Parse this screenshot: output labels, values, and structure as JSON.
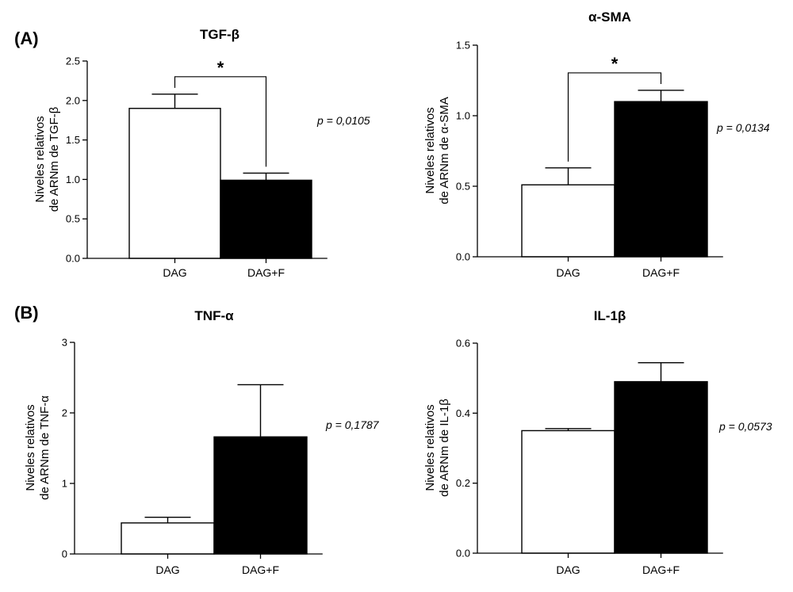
{
  "panel_labels": [
    "(A)",
    "(B)"
  ],
  "chart_data": [
    {
      "type": "bar",
      "title": "TGF-β",
      "ylabel_lines": [
        "Niveles relativos",
        "de ARNm de TGF-β"
      ],
      "categories": [
        "DAG",
        "DAG+F"
      ],
      "values": [
        1.9,
        0.99
      ],
      "errors": [
        0.18,
        0.09
      ],
      "bar_fill": [
        "#ffffff",
        "#000000"
      ],
      "ylim": [
        0,
        2.5
      ],
      "yticks": [
        0,
        0.5,
        1.0,
        1.5,
        2.0,
        2.5
      ],
      "ytick_labels": [
        "0.0",
        "0.5",
        "1.0",
        "1.5",
        "2.0",
        "2.5"
      ],
      "p_value": "p = 0,0105",
      "significance": "*",
      "significance_bracket": true
    },
    {
      "type": "bar",
      "title": "α-SMA",
      "ylabel_lines": [
        "Niveles relativos",
        "de ARNm de α-SMA"
      ],
      "categories": [
        "DAG",
        "DAG+F"
      ],
      "values": [
        0.51,
        1.1
      ],
      "errors": [
        0.12,
        0.08
      ],
      "bar_fill": [
        "#ffffff",
        "#000000"
      ],
      "ylim": [
        0,
        1.5
      ],
      "yticks": [
        0,
        0.5,
        1.0,
        1.5
      ],
      "ytick_labels": [
        "0.0",
        "0.5",
        "1.0",
        "1.5"
      ],
      "p_value": "p = 0,0134",
      "significance": "*",
      "significance_bracket": true
    },
    {
      "type": "bar",
      "title": "TNF-α",
      "ylabel_lines": [
        "Niveles relativos",
        "de ARNm de TNF-α"
      ],
      "categories": [
        "DAG",
        "DAG+F"
      ],
      "values": [
        0.44,
        1.66
      ],
      "errors": [
        0.08,
        0.74
      ],
      "bar_fill": [
        "#ffffff",
        "#000000"
      ],
      "ylim": [
        0,
        3
      ],
      "yticks": [
        0,
        1,
        2,
        3
      ],
      "ytick_labels": [
        "0",
        "1",
        "2",
        "3"
      ],
      "p_value": "p = 0,1787",
      "significance": "",
      "significance_bracket": false
    },
    {
      "type": "bar",
      "title": "IL-1β",
      "ylabel_lines": [
        "Niveles relativos",
        "de ARNm de IL-1β"
      ],
      "categories": [
        "DAG",
        "DAG+F"
      ],
      "values": [
        0.35,
        0.49
      ],
      "errors": [
        0.006,
        0.054
      ],
      "bar_fill": [
        "#ffffff",
        "#000000"
      ],
      "ylim": [
        0,
        0.6
      ],
      "yticks": [
        0,
        0.2,
        0.4,
        0.6
      ],
      "ytick_labels": [
        "0.0",
        "0.2",
        "0.4",
        "0.6"
      ],
      "p_value": "p = 0,0573",
      "significance": "",
      "significance_bracket": false
    }
  ]
}
